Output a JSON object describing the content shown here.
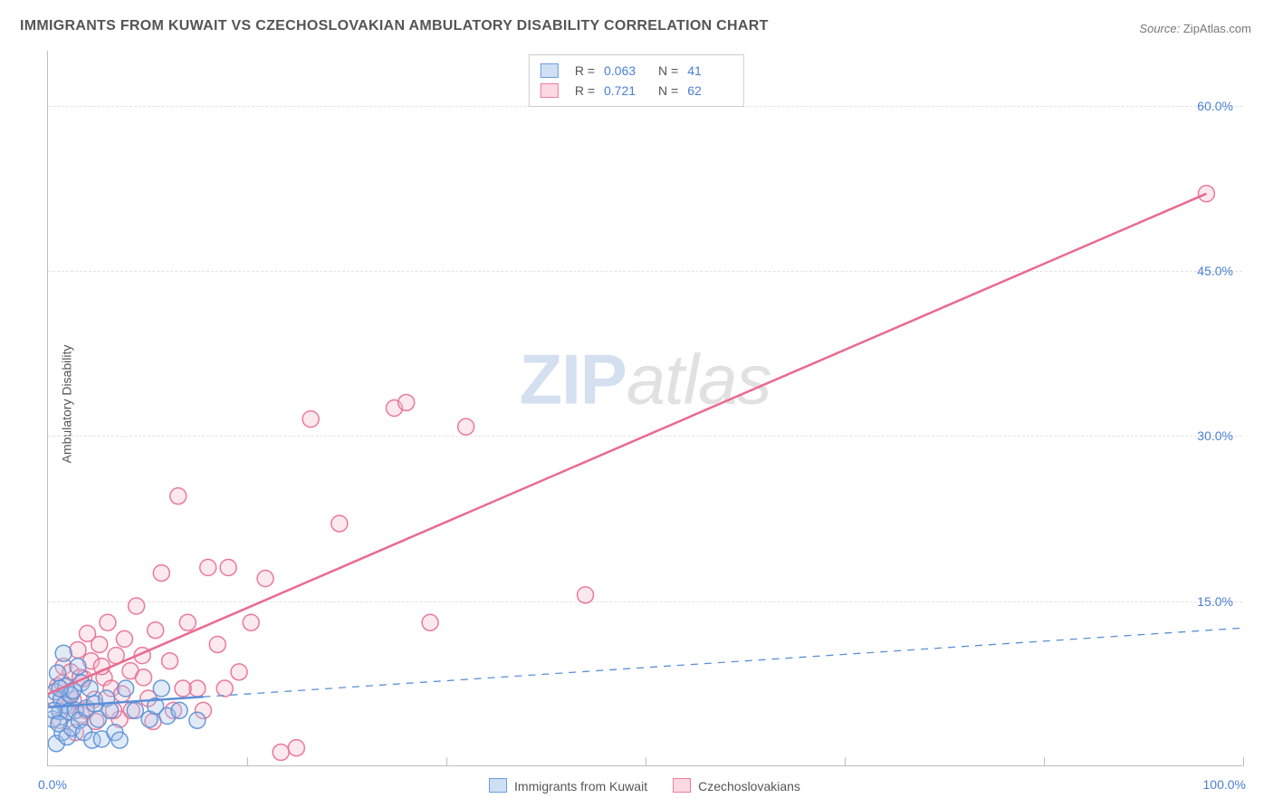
{
  "title": "IMMIGRANTS FROM KUWAIT VS CZECHOSLOVAKIAN AMBULATORY DISABILITY CORRELATION CHART",
  "source_label": "Source:",
  "source_value": "ZipAtlas.com",
  "ylabel": "Ambulatory Disability",
  "watermark_a": "ZIP",
  "watermark_b": "atlas",
  "chart": {
    "type": "scatter",
    "xlim": [
      0,
      100
    ],
    "ylim": [
      0,
      65
    ],
    "x_min_label": "0.0%",
    "x_max_label": "100.0%",
    "y_ticks": [
      {
        "v": 15,
        "label": "15.0%"
      },
      {
        "v": 30,
        "label": "30.0%"
      },
      {
        "v": 45,
        "label": "45.0%"
      },
      {
        "v": 60,
        "label": "60.0%"
      }
    ],
    "x_ticks_minor": [
      16.67,
      33.33,
      50,
      66.67,
      83.33,
      100
    ],
    "grid_color": "#e2e2e2",
    "axis_color": "#bdbdbd",
    "background_color": "#ffffff",
    "tick_label_color": "#4a7fd4",
    "marker_radius": 9,
    "line_width_solid": 2.5,
    "line_width_dash": 1.3,
    "series": [
      {
        "key": "kuwait",
        "label": "Immigrants from Kuwait",
        "color_fill": "#a9c6ec",
        "color_stroke": "#5b8fd6",
        "swatch_fill": "#cfe0f5",
        "swatch_border": "#6a9de0",
        "R": "0.063",
        "N": "41",
        "trend": {
          "style": "solid_then_dash",
          "x1": 0,
          "y1": 5.3,
          "xm": 13,
          "x2": 100,
          "y2": 12.5
        },
        "points": [
          [
            0.4,
            4.2
          ],
          [
            0.6,
            6.7
          ],
          [
            0.7,
            2.0
          ],
          [
            0.8,
            8.4
          ],
          [
            1.0,
            4.9
          ],
          [
            1.1,
            6.0
          ],
          [
            1.2,
            3.0
          ],
          [
            1.3,
            10.2
          ],
          [
            1.4,
            5.5
          ],
          [
            1.5,
            7.2
          ],
          [
            1.6,
            2.6
          ],
          [
            1.7,
            4.9
          ],
          [
            1.9,
            6.4
          ],
          [
            2.0,
            3.4
          ],
          [
            2.1,
            6.8
          ],
          [
            2.3,
            5.0
          ],
          [
            2.5,
            9.0
          ],
          [
            2.6,
            4.1
          ],
          [
            2.8,
            7.5
          ],
          [
            3.0,
            3.0
          ],
          [
            3.2,
            5.2
          ],
          [
            3.5,
            7.0
          ],
          [
            3.7,
            2.3
          ],
          [
            3.9,
            5.6
          ],
          [
            4.2,
            4.2
          ],
          [
            4.5,
            2.4
          ],
          [
            4.9,
            6.1
          ],
          [
            5.2,
            5.0
          ],
          [
            5.6,
            3.0
          ],
          [
            6.0,
            2.3
          ],
          [
            6.5,
            7.0
          ],
          [
            7.3,
            5.0
          ],
          [
            8.5,
            4.2
          ],
          [
            9.0,
            5.4
          ],
          [
            9.5,
            7.0
          ],
          [
            10.0,
            4.5
          ],
          [
            11.0,
            5.0
          ],
          [
            12.5,
            4.1
          ],
          [
            0.5,
            5.0
          ],
          [
            1.0,
            7.0
          ],
          [
            0.9,
            3.8
          ]
        ]
      },
      {
        "key": "czech",
        "label": "Czechoslovakians",
        "color_fill": "#f4c0cf",
        "color_stroke": "#e96a8f",
        "swatch_fill": "#fbd9e2",
        "swatch_border": "#ec7d9e",
        "R": "0.721",
        "N": "62",
        "trend": {
          "style": "solid",
          "x1": 0,
          "y1": 6.5,
          "x2": 97,
          "y2": 52
        },
        "points": [
          [
            0.8,
            7.2
          ],
          [
            1.0,
            4.1
          ],
          [
            1.3,
            9.0
          ],
          [
            1.6,
            5.4
          ],
          [
            1.9,
            8.5
          ],
          [
            2.1,
            6.0
          ],
          [
            2.5,
            10.5
          ],
          [
            2.8,
            4.6
          ],
          [
            3.0,
            7.9
          ],
          [
            3.3,
            12.0
          ],
          [
            3.6,
            9.5
          ],
          [
            3.9,
            6.0
          ],
          [
            4.3,
            11.0
          ],
          [
            4.7,
            8.0
          ],
          [
            5.0,
            13.0
          ],
          [
            5.3,
            7.0
          ],
          [
            5.7,
            10.0
          ],
          [
            6.0,
            4.2
          ],
          [
            6.4,
            11.5
          ],
          [
            6.9,
            8.6
          ],
          [
            7.4,
            14.5
          ],
          [
            7.9,
            10.0
          ],
          [
            8.4,
            6.1
          ],
          [
            9.0,
            12.3
          ],
          [
            9.5,
            17.5
          ],
          [
            10.2,
            9.5
          ],
          [
            10.9,
            24.5
          ],
          [
            11.7,
            13.0
          ],
          [
            12.5,
            7.0
          ],
          [
            13.4,
            18.0
          ],
          [
            14.2,
            11.0
          ],
          [
            15.1,
            18.0
          ],
          [
            16.0,
            8.5
          ],
          [
            17.0,
            13.0
          ],
          [
            18.2,
            17.0
          ],
          [
            19.5,
            1.2
          ],
          [
            20.8,
            1.6
          ],
          [
            22.0,
            31.5
          ],
          [
            24.4,
            22.0
          ],
          [
            29.0,
            32.5
          ],
          [
            30.0,
            33.0
          ],
          [
            32.0,
            13.0
          ],
          [
            35.0,
            30.8
          ],
          [
            45.0,
            15.5
          ],
          [
            97.0,
            52.0
          ],
          [
            2.3,
            3.0
          ],
          [
            3.2,
            5.0
          ],
          [
            4.0,
            4.0
          ],
          [
            5.5,
            5.0
          ],
          [
            6.2,
            6.5
          ],
          [
            4.5,
            9.0
          ],
          [
            7.0,
            5.0
          ],
          [
            8.0,
            8.0
          ],
          [
            8.8,
            4.0
          ],
          [
            10.5,
            5.0
          ],
          [
            11.3,
            7.0
          ],
          [
            13.0,
            5.0
          ],
          [
            14.8,
            7.0
          ],
          [
            0.6,
            6.0
          ],
          [
            1.2,
            7.5
          ],
          [
            1.8,
            6.5
          ],
          [
            2.7,
            8.0
          ]
        ]
      }
    ]
  }
}
